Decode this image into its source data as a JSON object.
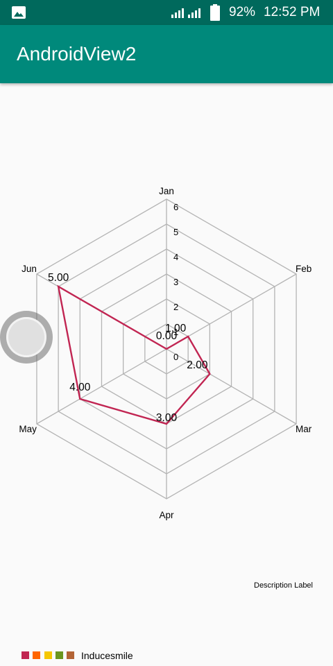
{
  "status_bar": {
    "battery": "92%",
    "time": "12:52 PM",
    "image_icon": "image-icon",
    "signal_icon": "signal-icon",
    "battery_icon": "battery-icon"
  },
  "app_bar": {
    "title": "AndroidView2",
    "color": "#00897b"
  },
  "description": "Description Label",
  "legend": {
    "label": "Inducesmile",
    "colors": [
      "#c12552",
      "#ff6600",
      "#f5c700",
      "#6a961f",
      "#b36435"
    ]
  },
  "chart_data": {
    "type": "radar",
    "axes": [
      "Jan",
      "Feb",
      "Mar",
      "Apr",
      "May",
      "Jun"
    ],
    "series": [
      {
        "name": "Inducesmile",
        "values": [
          0,
          1,
          2,
          3,
          4,
          5
        ],
        "value_labels": [
          "0.00",
          "1.00",
          "2.00",
          "3.00",
          "4.00",
          "5.00"
        ],
        "color": "#c12552"
      }
    ],
    "ticks": [
      "0",
      "1",
      "2",
      "3",
      "4",
      "5",
      "6"
    ],
    "range": [
      0,
      6
    ]
  }
}
